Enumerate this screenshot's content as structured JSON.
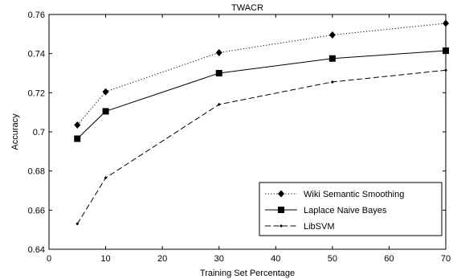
{
  "chart_data": {
    "type": "line",
    "title": "TWACR",
    "xlabel": "Training Set Percentage",
    "ylabel": "Accuracy",
    "xlim": [
      0,
      70
    ],
    "ylim": [
      0.64,
      0.76
    ],
    "xticks": [
      "0",
      "10",
      "20",
      "30",
      "40",
      "50",
      "60",
      "70"
    ],
    "yticks": [
      "0.64",
      "0.66",
      "0.68",
      "0.7",
      "0.72",
      "0.74",
      "0.76"
    ],
    "grid": false,
    "legend_position": "bottom-right",
    "x": [
      5,
      10,
      30,
      50,
      70
    ],
    "series": [
      {
        "name": "Wiki Semantic Smoothing",
        "values": [
          0.7035,
          0.7205,
          0.7405,
          0.7495,
          0.7555
        ],
        "line_style": "dotted",
        "marker": "diamond"
      },
      {
        "name": "Laplace Naive Bayes",
        "values": [
          0.6965,
          0.7105,
          0.73,
          0.7375,
          0.7415
        ],
        "line_style": "solid",
        "marker": "square"
      },
      {
        "name": "LibSVM",
        "values": [
          0.653,
          0.6765,
          0.714,
          0.7255,
          0.7315
        ],
        "line_style": "dashed",
        "marker": "point"
      }
    ]
  }
}
